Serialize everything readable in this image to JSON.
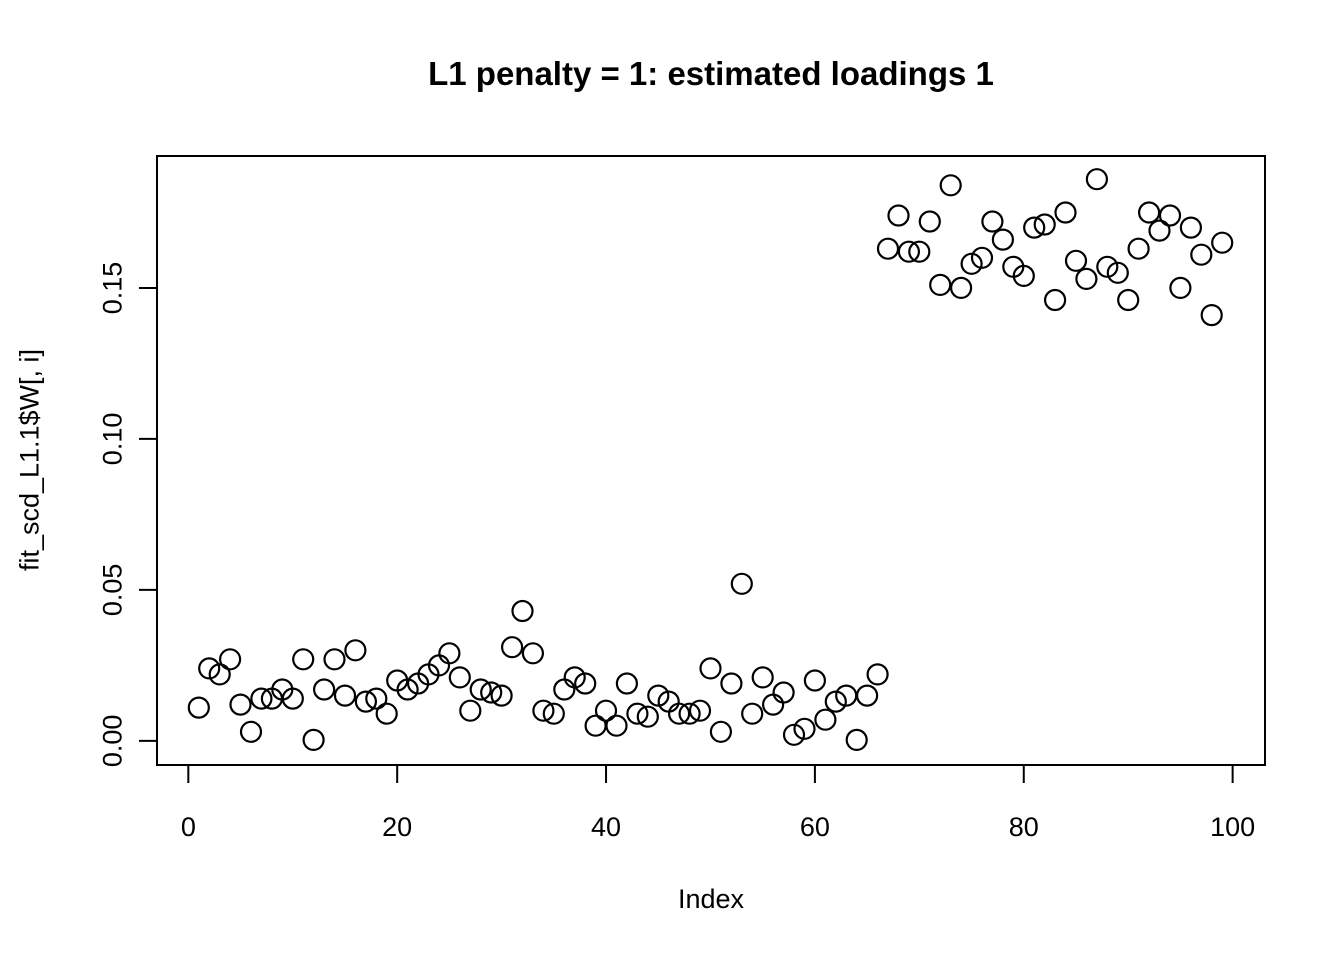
{
  "page": {
    "background_color": "#ffffff",
    "foreground_color": "#000000"
  },
  "chart_data": {
    "type": "scatter",
    "title": "L1 penalty = 1: estimated loadings 1",
    "xlabel": "Index",
    "ylabel": "fit_scd_L1.1$W[, i]",
    "x_ticks": [
      0,
      20,
      40,
      60,
      80,
      100
    ],
    "y_tick_labels": [
      "0.00",
      "0.05",
      "0.10",
      "0.15"
    ],
    "xlim": [
      -3.0,
      103.1
    ],
    "ylim": [
      -0.008,
      0.1937
    ],
    "grid": false,
    "legend": "none",
    "marker": {
      "shape": "open-circle",
      "color": "#000000",
      "radius_px": 10
    },
    "x": [
      1,
      2,
      3,
      4,
      5,
      6,
      7,
      8,
      9,
      10,
      11,
      12,
      13,
      14,
      15,
      16,
      17,
      18,
      19,
      20,
      21,
      22,
      23,
      24,
      25,
      26,
      27,
      28,
      29,
      30,
      31,
      32,
      33,
      34,
      35,
      36,
      37,
      38,
      39,
      40,
      41,
      42,
      43,
      44,
      45,
      46,
      47,
      48,
      49,
      50,
      51,
      52,
      53,
      54,
      55,
      56,
      57,
      58,
      59,
      60,
      61,
      62,
      63,
      64,
      65,
      66,
      67,
      68,
      69,
      70,
      71,
      72,
      73,
      74,
      75,
      76,
      77,
      78,
      79,
      80,
      81,
      82,
      83,
      84,
      85,
      86,
      87,
      88,
      89,
      90,
      91,
      92,
      93,
      94,
      95,
      96,
      97,
      98,
      99
    ],
    "y": [
      0.011,
      0.024,
      0.022,
      0.027,
      0.012,
      0.003,
      0.014,
      0.014,
      0.017,
      0.014,
      0.027,
      0.0003,
      0.017,
      0.027,
      0.015,
      0.03,
      0.013,
      0.014,
      0.009,
      0.02,
      0.017,
      0.019,
      0.022,
      0.025,
      0.029,
      0.021,
      0.01,
      0.017,
      0.016,
      0.015,
      0.031,
      0.043,
      0.029,
      0.01,
      0.009,
      0.017,
      0.021,
      0.019,
      0.005,
      0.01,
      0.005,
      0.019,
      0.009,
      0.008,
      0.015,
      0.013,
      0.009,
      0.009,
      0.01,
      0.024,
      0.003,
      0.019,
      0.052,
      0.009,
      0.021,
      0.012,
      0.016,
      0.002,
      0.004,
      0.02,
      0.007,
      0.013,
      0.015,
      0.0003,
      0.015,
      0.022,
      0.163,
      0.174,
      0.162,
      0.162,
      0.172,
      0.151,
      0.184,
      0.15,
      0.158,
      0.16,
      0.172,
      0.166,
      0.157,
      0.154,
      0.17,
      0.171,
      0.146,
      0.175,
      0.159,
      0.153,
      0.186,
      0.157,
      0.155,
      0.146,
      0.163,
      0.175,
      0.169,
      0.174,
      0.15,
      0.17,
      0.161,
      0.141,
      0.165
    ]
  }
}
